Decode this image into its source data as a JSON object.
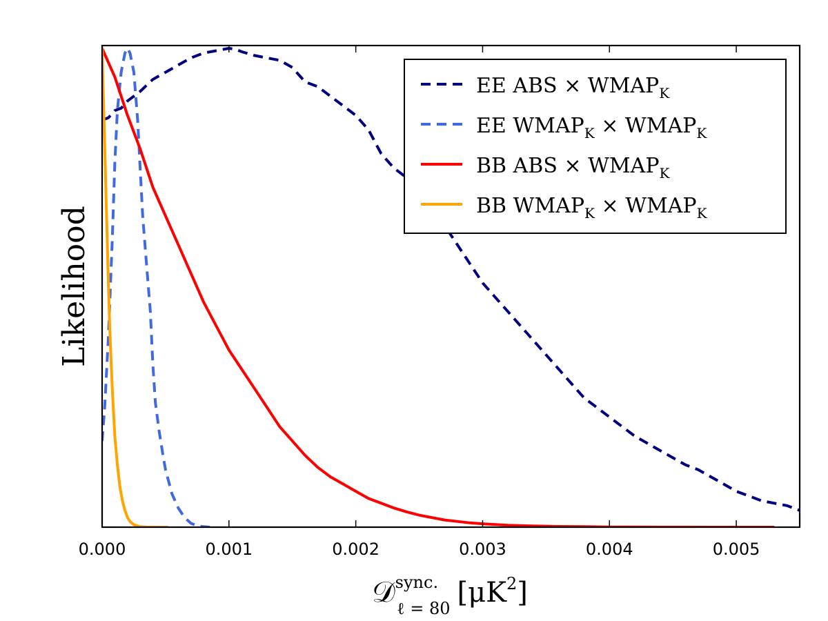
{
  "chart_data": {
    "type": "line",
    "title": "",
    "ylabel": "Likelihood",
    "xlabel": {
      "symbol": "𝒟",
      "superscript": "sync.",
      "subscript": "ℓ = 80",
      "unit": "[μK",
      "unit_power": "2",
      "unit_close": "]"
    },
    "xlim": [
      0,
      0.0055
    ],
    "ylim": [
      0,
      1
    ],
    "x_ticks": [
      0.0,
      0.001,
      0.002,
      0.003,
      0.004,
      0.005
    ],
    "x_tick_labels": [
      "0.000",
      "0.001",
      "0.002",
      "0.003",
      "0.004",
      "0.005"
    ],
    "y_ticks_shown": false,
    "legend_position": "top-right",
    "series": [
      {
        "name": "EE ABS × WMAP_K",
        "legend": {
          "pre": "EE ABS × WMAP",
          "sub": "K",
          "post": ""
        },
        "color": "#000080",
        "dash": true,
        "x": [
          0.0,
          5e-05,
          0.0001,
          0.00015,
          0.0002,
          0.00025,
          0.0003,
          0.0004,
          0.0005,
          0.0006,
          0.0007,
          0.0008,
          0.0009,
          0.001,
          0.00105,
          0.0011,
          0.0012,
          0.0013,
          0.0014,
          0.0015,
          0.0016,
          0.0017,
          0.0018,
          0.0019,
          0.002,
          0.0021,
          0.0022,
          0.0023,
          0.0024,
          0.0025,
          0.0026,
          0.0027,
          0.0028,
          0.0029,
          0.003,
          0.0031,
          0.0032,
          0.0033,
          0.0034,
          0.0035,
          0.0036,
          0.0037,
          0.0038,
          0.0039,
          0.004,
          0.0041,
          0.0042,
          0.0043,
          0.0044,
          0.0045,
          0.0046,
          0.0047,
          0.0048,
          0.0049,
          0.005,
          0.0051,
          0.0052,
          0.0053,
          0.0054,
          0.0055
        ],
        "values": [
          0.85,
          0.855,
          0.87,
          0.875,
          0.89,
          0.9,
          0.91,
          0.935,
          0.95,
          0.965,
          0.98,
          0.99,
          0.995,
          1.0,
          0.998,
          0.993,
          0.985,
          0.98,
          0.975,
          0.96,
          0.93,
          0.92,
          0.9,
          0.88,
          0.86,
          0.83,
          0.78,
          0.75,
          0.73,
          0.7,
          0.67,
          0.63,
          0.59,
          0.55,
          0.51,
          0.48,
          0.45,
          0.42,
          0.39,
          0.36,
          0.33,
          0.3,
          0.27,
          0.25,
          0.23,
          0.21,
          0.19,
          0.175,
          0.16,
          0.145,
          0.13,
          0.12,
          0.105,
          0.09,
          0.075,
          0.065,
          0.055,
          0.05,
          0.045,
          0.035
        ]
      },
      {
        "name": "EE WMAP_K × WMAP_K",
        "legend": {
          "pre": "EE WMAP",
          "sub": "K",
          "post": " × WMAP",
          "sub2": "K"
        },
        "color": "#4169E1",
        "dash": true,
        "x": [
          0.0,
          2e-05,
          5e-05,
          8e-05,
          0.0001,
          0.00012,
          0.00015,
          0.00018,
          0.0002,
          0.00022,
          0.00025,
          0.00028,
          0.0003,
          0.00032,
          0.00035,
          0.00038,
          0.0004,
          0.00042,
          0.00045,
          0.00048,
          0.0005,
          0.00055,
          0.0006,
          0.00065,
          0.0007,
          0.00075,
          0.0008,
          0.00085
        ],
        "values": [
          0.18,
          0.25,
          0.4,
          0.6,
          0.76,
          0.87,
          0.95,
          0.99,
          1.0,
          0.99,
          0.95,
          0.85,
          0.75,
          0.65,
          0.55,
          0.45,
          0.34,
          0.26,
          0.2,
          0.15,
          0.12,
          0.07,
          0.04,
          0.02,
          0.008,
          0.003,
          0.001,
          0.0
        ]
      },
      {
        "name": "BB ABS × WMAP_K",
        "legend": {
          "pre": "BB ABS × WMAP",
          "sub": "K",
          "post": ""
        },
        "color": "#FF0000",
        "dash": false,
        "x": [
          0.0,
          5e-05,
          0.0001,
          0.00015,
          0.0002,
          0.0003,
          0.0004,
          0.0005,
          0.0006,
          0.0007,
          0.0008,
          0.0009,
          0.001,
          0.0011,
          0.0012,
          0.0013,
          0.0014,
          0.0015,
          0.0016,
          0.0017,
          0.0018,
          0.0019,
          0.002,
          0.0021,
          0.0022,
          0.0023,
          0.0024,
          0.0025,
          0.0026,
          0.0027,
          0.0028,
          0.0029,
          0.003,
          0.0032,
          0.0034,
          0.0036,
          0.0038,
          0.004,
          0.0042,
          0.0044,
          0.0046,
          0.0048,
          0.005,
          0.0052,
          0.0053
        ],
        "values": [
          1.0,
          0.97,
          0.94,
          0.9,
          0.86,
          0.79,
          0.71,
          0.65,
          0.59,
          0.53,
          0.47,
          0.42,
          0.37,
          0.33,
          0.29,
          0.25,
          0.21,
          0.18,
          0.15,
          0.125,
          0.105,
          0.09,
          0.075,
          0.06,
          0.05,
          0.04,
          0.032,
          0.025,
          0.02,
          0.015,
          0.012,
          0.009,
          0.007,
          0.004,
          0.0025,
          0.0015,
          0.001,
          0.0005,
          0.0003,
          0.0002,
          0.0001,
          5e-05,
          0.0,
          0.0,
          0.0
        ]
      },
      {
        "name": "BB WMAP_K × WMAP_K",
        "legend": {
          "pre": "BB WMAP",
          "sub": "K",
          "post": " × WMAP",
          "sub2": "K"
        },
        "color": "#FFA500",
        "dash": false,
        "x": [
          0.0,
          1e-05,
          2e-05,
          3e-05,
          4e-05,
          5e-05,
          6e-05,
          7e-05,
          8e-05,
          9e-05,
          0.0001,
          0.00012,
          0.00014,
          0.00016,
          0.00018,
          0.0002,
          0.00022,
          0.00025,
          0.0003,
          0.00035,
          0.0004,
          0.00045,
          0.0005,
          0.00052
        ],
        "values": [
          1.0,
          0.9,
          0.8,
          0.7,
          0.6,
          0.5,
          0.42,
          0.35,
          0.29,
          0.24,
          0.19,
          0.13,
          0.085,
          0.055,
          0.035,
          0.02,
          0.012,
          0.005,
          0.001,
          0.0003,
          0.0001,
          0.0,
          0.0,
          0.0
        ]
      }
    ]
  }
}
